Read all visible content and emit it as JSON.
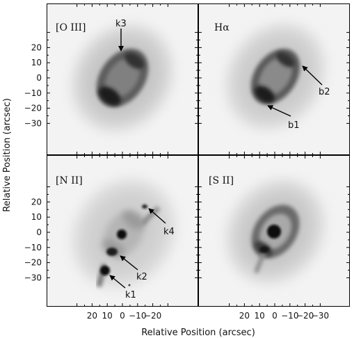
{
  "figure": {
    "xlabel": "Relative Position (arcsec)",
    "ylabel": "Relative Position (arcsec)",
    "x_ticks": [
      "20",
      "10",
      "0",
      "−10",
      "−20",
      "−30"
    ],
    "y_ticks": [
      "20",
      "10",
      "0",
      "−10",
      "−20",
      "−30"
    ]
  },
  "panels": [
    {
      "id": "oiii",
      "label": "[O III]",
      "annotations": [
        "k3"
      ]
    },
    {
      "id": "halpha",
      "label": "Hα",
      "annotations": [
        "b2",
        "b1"
      ]
    },
    {
      "id": "nii",
      "label": "[N II]",
      "annotations": [
        "k4",
        "k2",
        "k1"
      ]
    },
    {
      "id": "sii",
      "label": "[S II]",
      "annotations": []
    }
  ]
}
